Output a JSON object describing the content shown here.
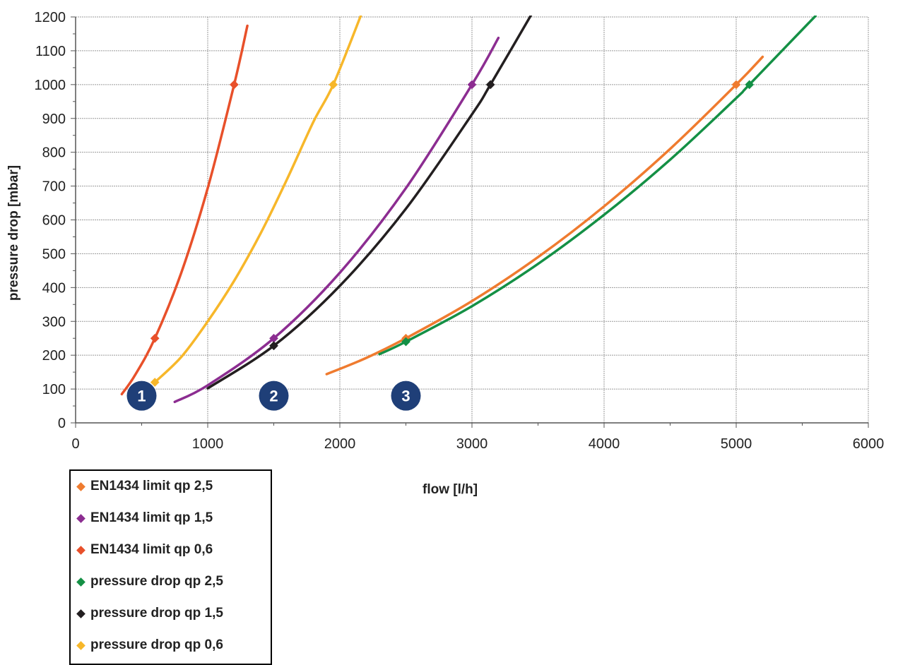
{
  "chart_data": {
    "type": "line",
    "xlabel": "flow [l/h]",
    "ylabel": "pressure drop [mbar]",
    "xlim": [
      0,
      6000
    ],
    "ylim": [
      0,
      1200
    ],
    "xticks": [
      0,
      1000,
      2000,
      3000,
      4000,
      5000,
      6000
    ],
    "yticks": [
      0,
      100,
      200,
      300,
      400,
      500,
      600,
      700,
      800,
      900,
      1000,
      1100,
      1200
    ],
    "grid": true,
    "legend_position": "bottom-left",
    "series": [
      {
        "name": "EN1434 limit qp 2,5",
        "color": "#ef7b2f",
        "x": [
          1900,
          2200,
          2500,
          3000,
          3500,
          4000,
          4500,
          5000,
          5200
        ],
        "y": [
          144,
          192,
          250,
          360,
          490,
          640,
          810,
          1000,
          1082
        ],
        "markers_x": [
          2500,
          5000
        ],
        "markers_y": [
          250,
          1000
        ]
      },
      {
        "name": "EN1434 limit qp 1,5",
        "color": "#8c2d91",
        "x": [
          750,
          1000,
          1500,
          2000,
          2500,
          3000,
          3200
        ],
        "y": [
          62,
          111,
          250,
          444,
          694,
          1000,
          1138
        ],
        "markers_x": [
          1500,
          3000
        ],
        "markers_y": [
          250,
          1000
        ]
      },
      {
        "name": "EN1434 limit qp 0,6",
        "color": "#e8502a",
        "x": [
          350,
          450,
          600,
          800,
          1000,
          1200,
          1300
        ],
        "y": [
          85,
          141,
          250,
          444,
          694,
          1000,
          1174
        ],
        "markers_x": [
          600,
          1200
        ],
        "markers_y": [
          250,
          1000
        ]
      },
      {
        "name": "pressure drop qp 2,5",
        "color": "#149045",
        "x": [
          2300,
          2500,
          3000,
          3500,
          4000,
          4500,
          5000,
          5100,
          5600
        ],
        "y": [
          203,
          240,
          345,
          470,
          615,
          778,
          960,
          1000,
          1203
        ],
        "markers_x": [
          2500,
          5100
        ],
        "markers_y": [
          240,
          1000
        ]
      },
      {
        "name": "pressure drop qp 1,5",
        "color": "#231f20",
        "x": [
          1000,
          1500,
          2000,
          2500,
          3000,
          3140,
          3450
        ],
        "y": [
          102,
          228,
          405,
          633,
          912,
          1000,
          1207
        ],
        "markers_x": [
          1500,
          3140
        ],
        "markers_y": [
          228,
          1000
        ]
      },
      {
        "name": "pressure drop qp 0,6",
        "color": "#f7b72a",
        "x": [
          600,
          800,
          1000,
          1200,
          1400,
          1600,
          1800,
          1950,
          2160
        ],
        "y": [
          120,
          195,
          300,
          420,
          560,
          720,
          890,
          1000,
          1205
        ],
        "markers_x": [
          600,
          1950
        ],
        "markers_y": [
          120,
          1000
        ]
      }
    ],
    "annotations": [
      {
        "label": "1",
        "x": 500,
        "y": 80
      },
      {
        "label": "2",
        "x": 1500,
        "y": 80
      },
      {
        "label": "3",
        "x": 2500,
        "y": 80
      }
    ],
    "annotation_color": "#1f3f78"
  }
}
